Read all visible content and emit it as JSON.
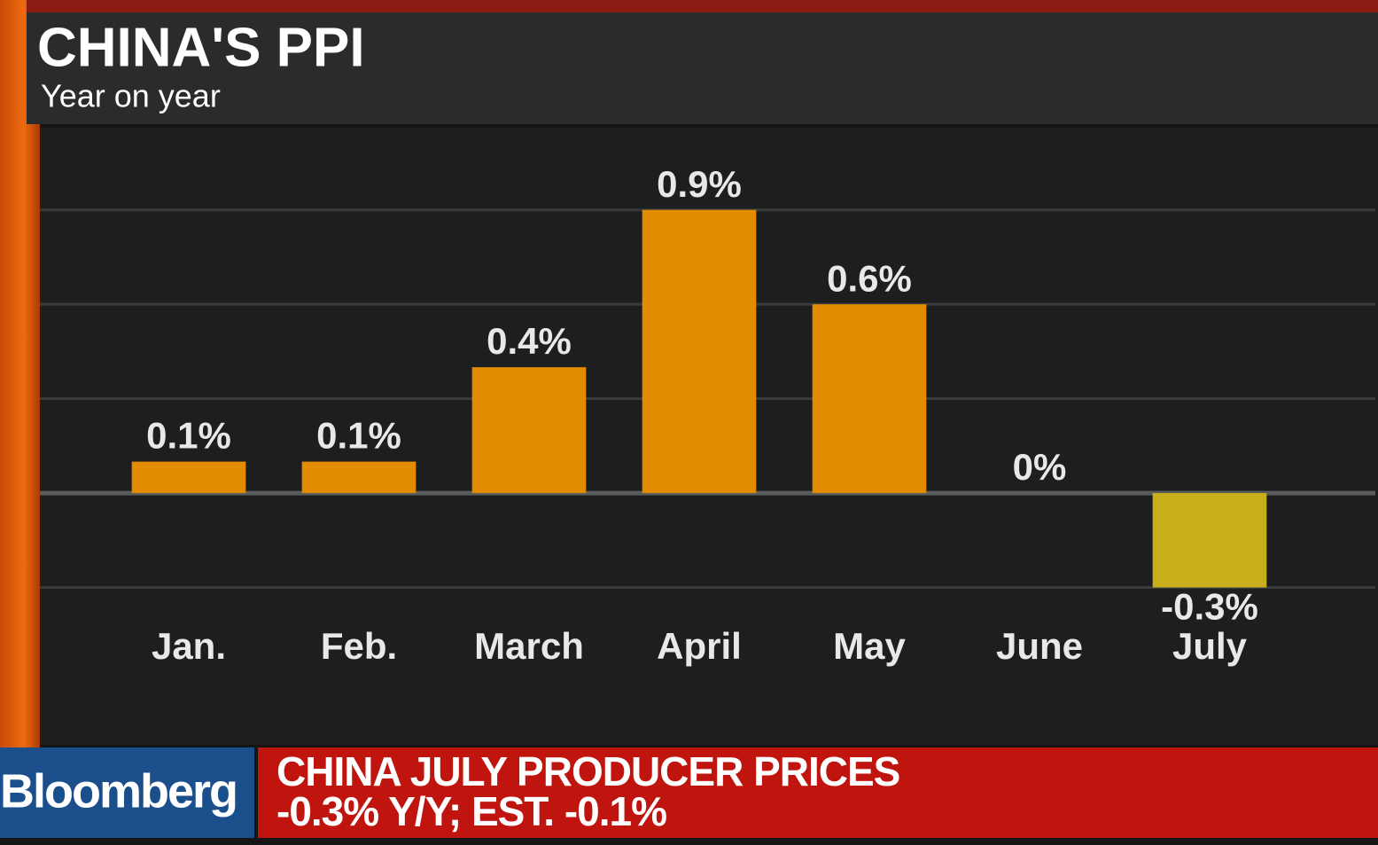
{
  "chart_data": {
    "type": "bar",
    "title": "CHINA'S PPI",
    "subtitle": "Year on year",
    "categories": [
      "Jan.",
      "Feb.",
      "March",
      "April",
      "May",
      "June",
      "July"
    ],
    "values": [
      0.1,
      0.1,
      0.4,
      0.9,
      0.6,
      0,
      -0.3
    ],
    "value_labels": [
      "0.1%",
      "0.1%",
      "0.4%",
      "0.9%",
      "0.6%",
      "0%",
      "-0.3%"
    ],
    "color": "#e38c00",
    "negative_color": "#c8b01c",
    "ylim": [
      -0.8,
      1.15
    ],
    "yticks": [
      -0.3,
      0,
      0.3,
      0.6,
      0.9
    ],
    "grid": true
  },
  "banner": {
    "brand": "Bloomberg",
    "headline": [
      "CHINA JULY PRODUCER PRICES",
      "-0.3% Y/Y; EST. -0.1%"
    ]
  }
}
